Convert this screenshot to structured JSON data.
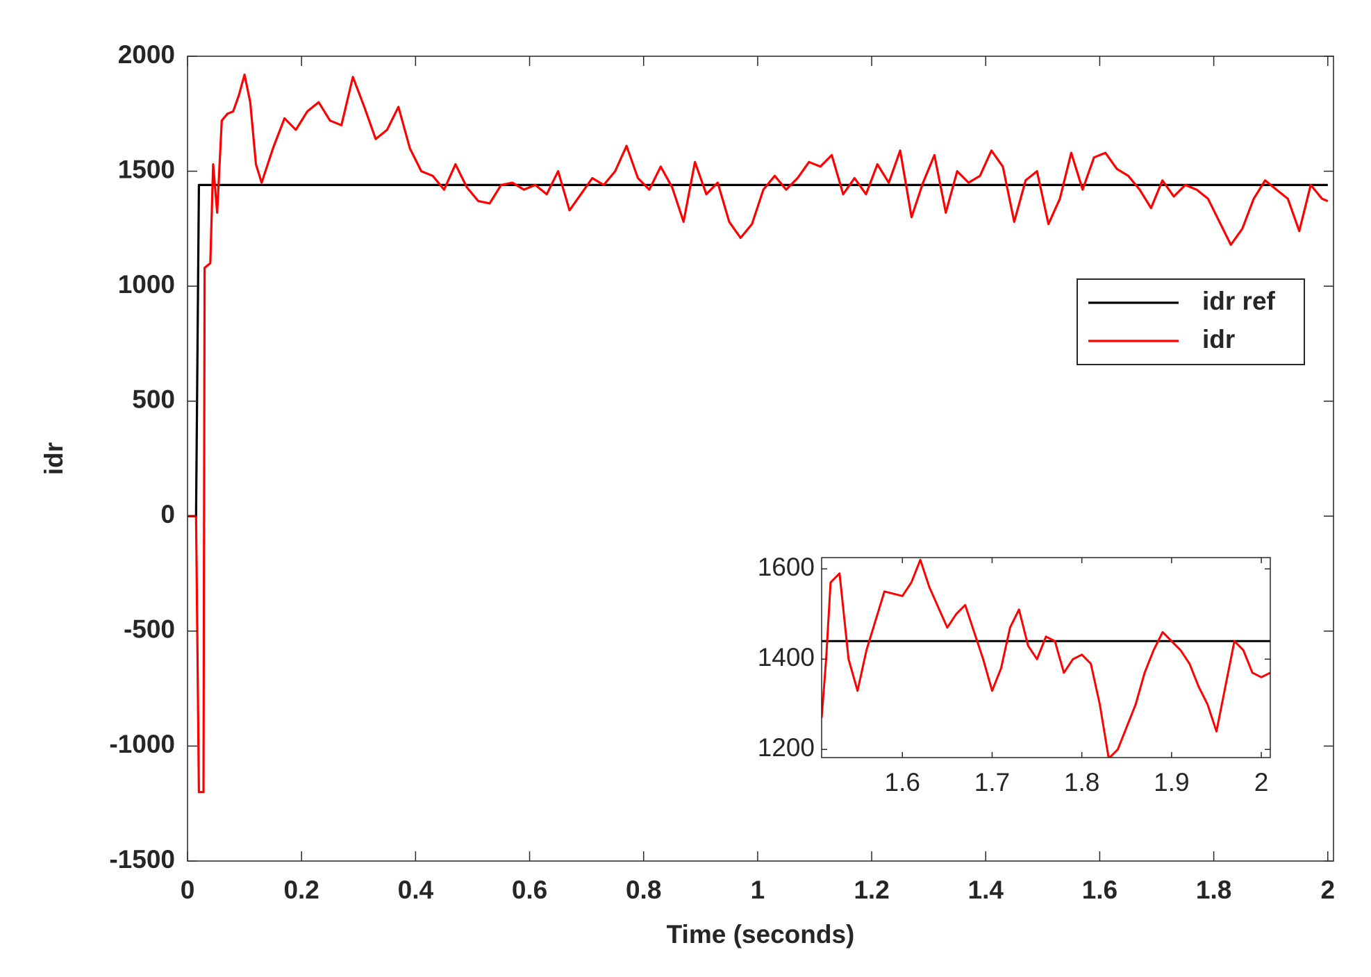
{
  "chart_data": [
    {
      "type": "line",
      "xlabel": "Time (seconds)",
      "ylabel": "idr",
      "xlim": [
        0,
        2.01
      ],
      "ylim": [
        -1500,
        2000
      ],
      "xticks": [
        0,
        0.2,
        0.4,
        0.6,
        0.8,
        1,
        1.2,
        1.4,
        1.6,
        1.8,
        2
      ],
      "yticks": [
        -1500,
        -1000,
        -500,
        0,
        500,
        1000,
        1500,
        2000
      ],
      "legend": "east",
      "x": [
        0,
        0.015,
        0.02,
        0.028,
        0.03,
        0.04,
        0.045,
        0.052,
        0.06,
        0.07,
        0.08,
        0.09,
        0.1,
        0.11,
        0.12,
        0.13,
        0.15,
        0.17,
        0.19,
        0.21,
        0.23,
        0.25,
        0.27,
        0.29,
        0.31,
        0.33,
        0.35,
        0.37,
        0.39,
        0.41,
        0.43,
        0.45,
        0.47,
        0.49,
        0.51,
        0.53,
        0.55,
        0.57,
        0.59,
        0.61,
        0.63,
        0.65,
        0.67,
        0.69,
        0.71,
        0.73,
        0.75,
        0.77,
        0.79,
        0.81,
        0.83,
        0.85,
        0.87,
        0.89,
        0.91,
        0.93,
        0.95,
        0.97,
        0.99,
        1.01,
        1.03,
        1.05,
        1.07,
        1.09,
        1.11,
        1.13,
        1.15,
        1.17,
        1.19,
        1.21,
        1.23,
        1.25,
        1.27,
        1.29,
        1.31,
        1.33,
        1.35,
        1.37,
        1.39,
        1.41,
        1.43,
        1.45,
        1.47,
        1.49,
        1.51,
        1.53,
        1.55,
        1.57,
        1.59,
        1.61,
        1.63,
        1.65,
        1.67,
        1.69,
        1.71,
        1.73,
        1.75,
        1.77,
        1.79,
        1.81,
        1.83,
        1.85,
        1.87,
        1.89,
        1.91,
        1.93,
        1.95,
        1.97,
        1.99,
        2.0
      ],
      "series": [
        {
          "name": "idr ref",
          "color": "#000000",
          "values": [
            0,
            0,
            1440,
            1440,
            1440,
            1440,
            1440,
            1440,
            1440,
            1440,
            1440,
            1440,
            1440,
            1440,
            1440,
            1440,
            1440,
            1440,
            1440,
            1440,
            1440,
            1440,
            1440,
            1440,
            1440,
            1440,
            1440,
            1440,
            1440,
            1440,
            1440,
            1440,
            1440,
            1440,
            1440,
            1440,
            1440,
            1440,
            1440,
            1440,
            1440,
            1440,
            1440,
            1440,
            1440,
            1440,
            1440,
            1440,
            1440,
            1440,
            1440,
            1440,
            1440,
            1440,
            1440,
            1440,
            1440,
            1440,
            1440,
            1440,
            1440,
            1440,
            1440,
            1440,
            1440,
            1440,
            1440,
            1440,
            1440,
            1440,
            1440,
            1440,
            1440,
            1440,
            1440,
            1440,
            1440,
            1440,
            1440,
            1440,
            1440,
            1440,
            1440,
            1440,
            1440,
            1440,
            1440,
            1440,
            1440,
            1440,
            1440,
            1440,
            1440,
            1440,
            1440,
            1440,
            1440,
            1440,
            1440,
            1440,
            1440,
            1440,
            1440,
            1440,
            1440,
            1440,
            1440,
            1440,
            1440,
            1440
          ]
        },
        {
          "name": "idr",
          "color": "#ff0000",
          "values": [
            0,
            0,
            -1200,
            -1200,
            1080,
            1100,
            1530,
            1320,
            1720,
            1750,
            1760,
            1830,
            1920,
            1800,
            1530,
            1450,
            1600,
            1730,
            1680,
            1760,
            1800,
            1720,
            1700,
            1910,
            1780,
            1640,
            1680,
            1780,
            1600,
            1500,
            1480,
            1420,
            1530,
            1430,
            1370,
            1360,
            1440,
            1450,
            1420,
            1440,
            1400,
            1500,
            1330,
            1400,
            1470,
            1440,
            1500,
            1610,
            1470,
            1420,
            1520,
            1430,
            1280,
            1540,
            1400,
            1450,
            1280,
            1210,
            1270,
            1420,
            1480,
            1420,
            1470,
            1540,
            1520,
            1570,
            1400,
            1470,
            1400,
            1530,
            1450,
            1590,
            1300,
            1450,
            1570,
            1320,
            1500,
            1450,
            1480,
            1590,
            1520,
            1280,
            1460,
            1500,
            1270,
            1380,
            1580,
            1420,
            1560,
            1580,
            1510,
            1480,
            1420,
            1340,
            1460,
            1390,
            1440,
            1420,
            1380,
            1280,
            1180,
            1250,
            1380,
            1460,
            1420,
            1380,
            1240,
            1440,
            1380,
            1370
          ]
        }
      ]
    },
    {
      "type": "line",
      "xlim": [
        1.51,
        2.01
      ],
      "ylim": [
        1182,
        1625
      ],
      "xticks": [
        1.6,
        1.7,
        1.8,
        1.9,
        2
      ],
      "yticks": [
        1200,
        1400,
        1600
      ],
      "x": [
        1.51,
        1.515,
        1.52,
        1.53,
        1.54,
        1.55,
        1.56,
        1.58,
        1.6,
        1.61,
        1.62,
        1.63,
        1.65,
        1.66,
        1.67,
        1.68,
        1.69,
        1.7,
        1.71,
        1.72,
        1.73,
        1.74,
        1.75,
        1.76,
        1.77,
        1.78,
        1.79,
        1.8,
        1.81,
        1.82,
        1.83,
        1.84,
        1.85,
        1.86,
        1.87,
        1.88,
        1.89,
        1.9,
        1.91,
        1.92,
        1.93,
        1.94,
        1.95,
        1.96,
        1.97,
        1.98,
        1.99,
        2.0,
        2.01
      ],
      "series": [
        {
          "name": "idr ref",
          "color": "#000000",
          "values": [
            1440,
            1440,
            1440,
            1440,
            1440,
            1440,
            1440,
            1440,
            1440,
            1440,
            1440,
            1440,
            1440,
            1440,
            1440,
            1440,
            1440,
            1440,
            1440,
            1440,
            1440,
            1440,
            1440,
            1440,
            1440,
            1440,
            1440,
            1440,
            1440,
            1440,
            1440,
            1440,
            1440,
            1440,
            1440,
            1440,
            1440,
            1440,
            1440,
            1440,
            1440,
            1440,
            1440,
            1440,
            1440,
            1440,
            1440,
            1440,
            1440
          ]
        },
        {
          "name": "idr",
          "color": "#ff0000",
          "values": [
            1270,
            1400,
            1570,
            1590,
            1400,
            1330,
            1420,
            1550,
            1540,
            1570,
            1620,
            1560,
            1470,
            1500,
            1520,
            1460,
            1400,
            1330,
            1380,
            1470,
            1510,
            1430,
            1400,
            1450,
            1440,
            1370,
            1400,
            1410,
            1390,
            1300,
            1180,
            1200,
            1250,
            1300,
            1370,
            1420,
            1460,
            1440,
            1420,
            1390,
            1340,
            1300,
            1240,
            1340,
            1440,
            1420,
            1370,
            1360,
            1370
          ]
        }
      ]
    }
  ]
}
